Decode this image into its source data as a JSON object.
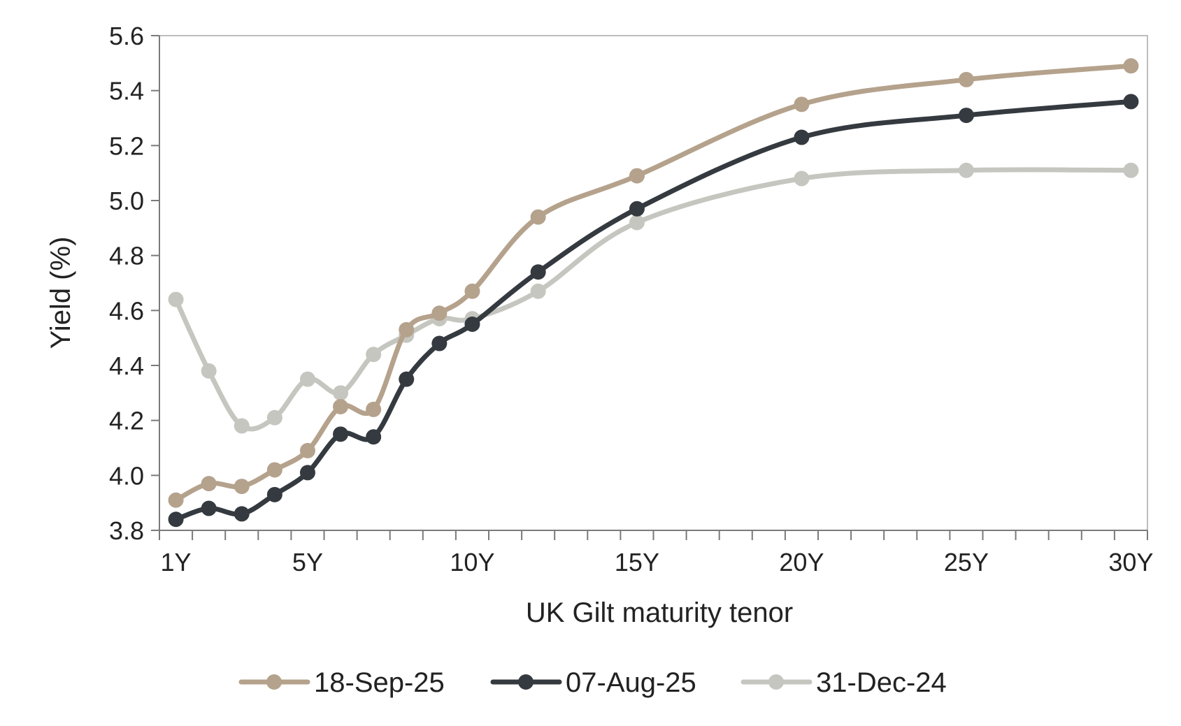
{
  "chart_data": {
    "type": "line",
    "title": "",
    "xlabel": "UK Gilt maturity tenor",
    "ylabel": "Yield (%)",
    "xlim": [
      0.5,
      30.5
    ],
    "ylim": [
      3.8,
      5.6
    ],
    "y_ticks": [
      3.8,
      4.0,
      4.2,
      4.4,
      4.6,
      4.8,
      5.0,
      5.2,
      5.4,
      5.6
    ],
    "x_tick_labels": [
      {
        "x": 1,
        "label": "1Y"
      },
      {
        "x": 5,
        "label": "5Y"
      },
      {
        "x": 10,
        "label": "10Y"
      },
      {
        "x": 15,
        "label": "15Y"
      },
      {
        "x": 20,
        "label": "20Y"
      },
      {
        "x": 25,
        "label": "25Y"
      },
      {
        "x": 30,
        "label": "30Y"
      }
    ],
    "x": [
      1,
      2,
      3,
      4,
      5,
      6,
      7,
      8,
      9,
      10,
      12,
      15,
      20,
      25,
      30
    ],
    "grid": false,
    "legend_position": "bottom",
    "series": [
      {
        "name": "18-Sep-25",
        "color": "#b5a28c",
        "values": [
          3.91,
          3.97,
          3.96,
          4.02,
          4.09,
          4.25,
          4.24,
          4.53,
          4.59,
          4.67,
          4.94,
          5.09,
          5.35,
          5.44,
          5.49
        ]
      },
      {
        "name": "07-Aug-25",
        "color": "#343a3f",
        "values": [
          3.84,
          3.88,
          3.86,
          3.93,
          4.01,
          4.15,
          4.14,
          4.35,
          4.48,
          4.55,
          4.74,
          4.97,
          5.23,
          5.31,
          5.36
        ]
      },
      {
        "name": "31-Dec-24",
        "color": "#c6c6c0",
        "values": [
          4.64,
          4.38,
          4.18,
          4.21,
          4.35,
          4.3,
          4.44,
          4.51,
          4.57,
          4.57,
          4.67,
          4.92,
          5.08,
          5.11,
          5.11
        ]
      }
    ]
  }
}
